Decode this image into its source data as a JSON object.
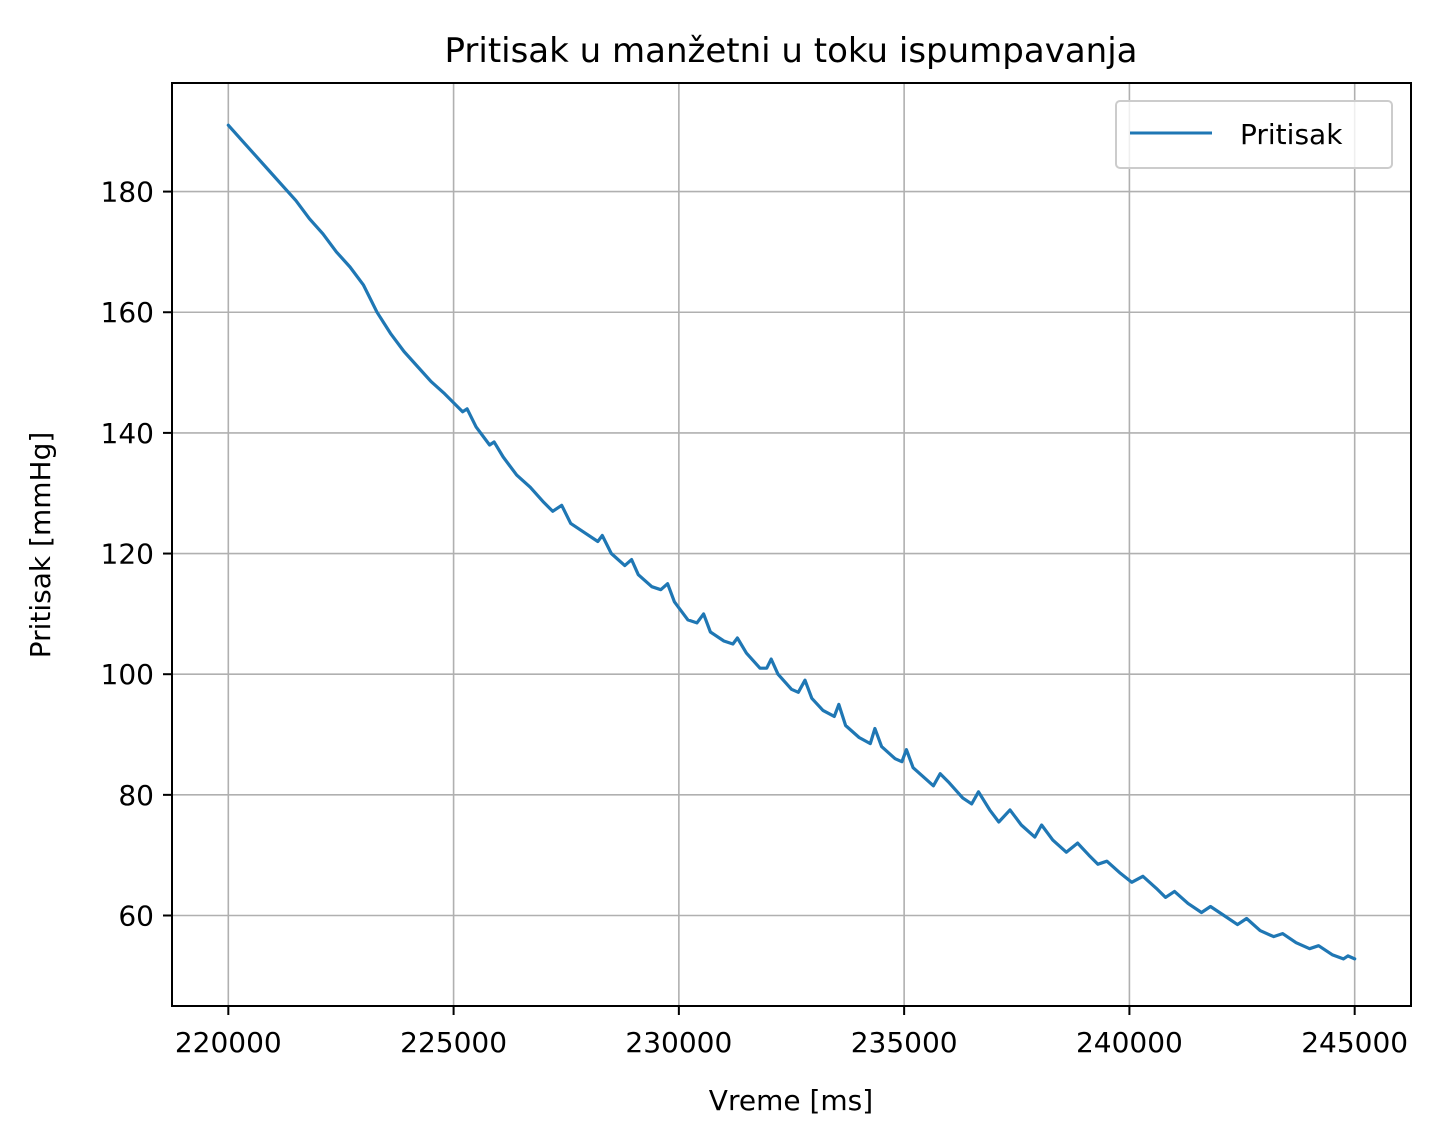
{
  "chart_data": {
    "type": "line",
    "title": "Pritisak u manžetni u toku ispumpavanja",
    "xlabel": "Vreme [ms]",
    "ylabel": "Pritisak [mmHg]",
    "xlim": [
      218750,
      246250
    ],
    "ylim": [
      45,
      198
    ],
    "xticks": [
      220000,
      225000,
      230000,
      235000,
      240000,
      245000
    ],
    "xtick_labels": [
      "220000",
      "225000",
      "230000",
      "235000",
      "240000",
      "245000"
    ],
    "yticks": [
      60,
      80,
      100,
      120,
      140,
      160,
      180
    ],
    "ytick_labels": [
      "60",
      "80",
      "100",
      "120",
      "140",
      "160",
      "180"
    ],
    "grid": true,
    "legend": {
      "position": "top-right",
      "entries": [
        "Pritisak"
      ]
    },
    "series": [
      {
        "name": "Pritisak",
        "color": "#1f77b4",
        "points": [
          [
            220000,
            191
          ],
          [
            220300,
            188.5
          ],
          [
            220600,
            186
          ],
          [
            220900,
            183.5
          ],
          [
            221200,
            181
          ],
          [
            221500,
            178.5
          ],
          [
            221800,
            175.5
          ],
          [
            222100,
            173
          ],
          [
            222400,
            170
          ],
          [
            222700,
            167.5
          ],
          [
            223000,
            164.5
          ],
          [
            223300,
            160
          ],
          [
            223600,
            156.5
          ],
          [
            223900,
            153.5
          ],
          [
            224200,
            151
          ],
          [
            224500,
            148.5
          ],
          [
            224800,
            146.5
          ],
          [
            225000,
            145
          ],
          [
            225200,
            143.5
          ],
          [
            225300,
            144
          ],
          [
            225500,
            141
          ],
          [
            225800,
            138
          ],
          [
            225900,
            138.5
          ],
          [
            226100,
            136
          ],
          [
            226400,
            133
          ],
          [
            226700,
            131
          ],
          [
            227000,
            128.5
          ],
          [
            227200,
            127
          ],
          [
            227400,
            128
          ],
          [
            227600,
            125
          ],
          [
            227900,
            123.5
          ],
          [
            228200,
            122
          ],
          [
            228300,
            123
          ],
          [
            228500,
            120
          ],
          [
            228800,
            118
          ],
          [
            228950,
            119
          ],
          [
            229100,
            116.5
          ],
          [
            229400,
            114.5
          ],
          [
            229600,
            114
          ],
          [
            229750,
            115
          ],
          [
            229900,
            112
          ],
          [
            230200,
            109
          ],
          [
            230400,
            108.5
          ],
          [
            230550,
            110
          ],
          [
            230700,
            107
          ],
          [
            231000,
            105.5
          ],
          [
            231200,
            105
          ],
          [
            231300,
            106
          ],
          [
            231500,
            103.5
          ],
          [
            231800,
            101
          ],
          [
            231950,
            101
          ],
          [
            232050,
            102.5
          ],
          [
            232200,
            100
          ],
          [
            232500,
            97.5
          ],
          [
            232650,
            97
          ],
          [
            232800,
            99
          ],
          [
            232950,
            96
          ],
          [
            233200,
            94
          ],
          [
            233450,
            93
          ],
          [
            233550,
            95
          ],
          [
            233700,
            91.5
          ],
          [
            234000,
            89.5
          ],
          [
            234250,
            88.5
          ],
          [
            234350,
            91
          ],
          [
            234500,
            88
          ],
          [
            234800,
            86
          ],
          [
            234950,
            85.5
          ],
          [
            235050,
            87.5
          ],
          [
            235200,
            84.5
          ],
          [
            235500,
            82.5
          ],
          [
            235650,
            81.5
          ],
          [
            235800,
            83.5
          ],
          [
            236000,
            82
          ],
          [
            236300,
            79.5
          ],
          [
            236500,
            78.5
          ],
          [
            236650,
            80.5
          ],
          [
            236900,
            77.5
          ],
          [
            237100,
            75.5
          ],
          [
            237350,
            77.5
          ],
          [
            237600,
            75
          ],
          [
            237900,
            73
          ],
          [
            238050,
            75
          ],
          [
            238300,
            72.5
          ],
          [
            238600,
            70.5
          ],
          [
            238850,
            72
          ],
          [
            239100,
            70
          ],
          [
            239300,
            68.5
          ],
          [
            239500,
            69
          ],
          [
            239800,
            67
          ],
          [
            240050,
            65.5
          ],
          [
            240300,
            66.5
          ],
          [
            240600,
            64.5
          ],
          [
            240800,
            63
          ],
          [
            241000,
            64
          ],
          [
            241300,
            62
          ],
          [
            241600,
            60.5
          ],
          [
            241800,
            61.5
          ],
          [
            242100,
            60
          ],
          [
            242400,
            58.5
          ],
          [
            242600,
            59.5
          ],
          [
            242900,
            57.5
          ],
          [
            243200,
            56.5
          ],
          [
            243400,
            57
          ],
          [
            243700,
            55.5
          ],
          [
            244000,
            54.5
          ],
          [
            244200,
            55
          ],
          [
            244500,
            53.5
          ],
          [
            244750,
            52.8
          ],
          [
            244850,
            53.3
          ],
          [
            245000,
            52.8
          ]
        ]
      }
    ]
  }
}
